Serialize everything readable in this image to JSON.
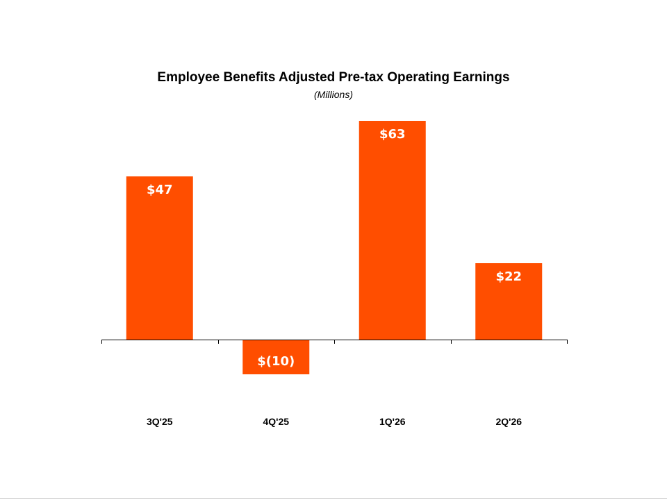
{
  "chart_data": {
    "type": "bar",
    "title": "Employee Benefits Adjusted Pre-tax Operating Earnings",
    "subtitle": "(Millions)",
    "categories": [
      "3Q'25",
      "4Q'25",
      "1Q'26",
      "2Q'26"
    ],
    "values": [
      47,
      -10,
      63,
      22
    ],
    "data_labels": [
      "$47",
      "$(10)",
      "$63",
      "$22"
    ],
    "ylim": [
      -20,
      70
    ],
    "grid": false,
    "legend": "none",
    "bar_color": "#FF4E00",
    "label_color": "#FFFFFF"
  }
}
